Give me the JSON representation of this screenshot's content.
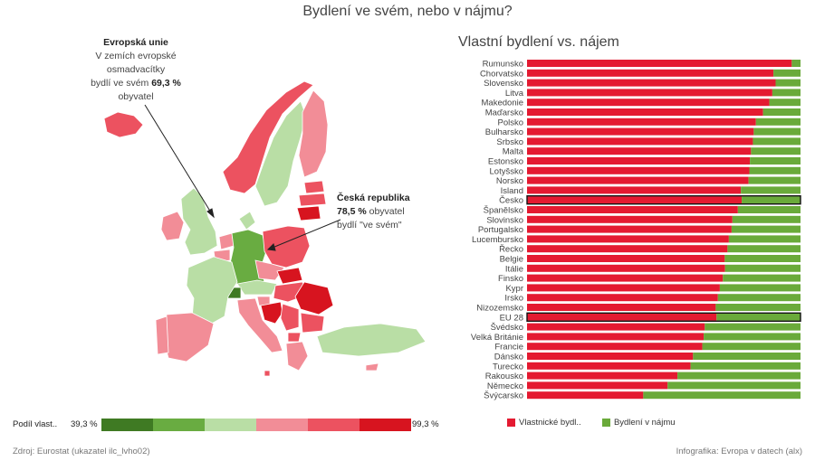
{
  "title": "Bydlení ve svém, nebo v nájmu?",
  "annotation_eu": {
    "heading": "Evropská unie",
    "line1": "V zemích evropské",
    "line2": "osmadvacítky",
    "line3_pre": "bydlí ve svém ",
    "line3_bold": "69,3 %",
    "line4": "obyvatel"
  },
  "annotation_cz": {
    "heading": "Česká republika",
    "line1_bold": "78,5 %",
    "line1_rest": " obyvatel",
    "line2": "bydlí \"ve svém\""
  },
  "map_legend": {
    "label": "Podíl vlast..",
    "min": "39,3 %",
    "max": "99,3 %",
    "colors": [
      "#3f7a23",
      "#69ac41",
      "#b9dea5",
      "#f28d97",
      "#ec5260",
      "#d7141f"
    ]
  },
  "chart_data": {
    "type": "bar",
    "title": "Vlastní bydlení vs. nájem",
    "orientation": "horizontal-stacked-100",
    "categories": [
      "Rumunsko",
      "Chorvatsko",
      "Slovensko",
      "Litva",
      "Makedonie",
      "Maďarsko",
      "Polsko",
      "Bulharsko",
      "Srbsko",
      "Malta",
      "Estonsko",
      "Lotyšsko",
      "Norsko",
      "Island",
      "Česko",
      "Španělsko",
      "Slovinsko",
      "Portugalsko",
      "Lucembursko",
      "Řecko",
      "Belgie",
      "Itálie",
      "Finsko",
      "Kypr",
      "Irsko",
      "Nizozemsko",
      "EU 28",
      "Švédsko",
      "Velká Británie",
      "Francie",
      "Dánsko",
      "Turecko",
      "Rakousko",
      "Německo",
      "Švýcarsko"
    ],
    "series": [
      {
        "name": "Vlastnické bydl..",
        "color": "#e41a31",
        "values": [
          96.8,
          90.1,
          90.9,
          89.7,
          88.6,
          86.3,
          83.7,
          82.9,
          82.6,
          81.9,
          81.5,
          81.3,
          81.0,
          78.2,
          78.5,
          77.1,
          75.1,
          74.8,
          73.8,
          73.3,
          72.3,
          72.4,
          71.6,
          70.5,
          69.8,
          69.0,
          69.3,
          65.0,
          64.6,
          64.1,
          60.7,
          59.8,
          55.0,
          51.4,
          42.5
        ]
      },
      {
        "name": "Bydlení v nájmu",
        "color": "#6aaa3a",
        "values": [
          3.2,
          9.9,
          9.1,
          10.3,
          11.4,
          13.7,
          16.3,
          17.1,
          17.4,
          18.1,
          18.5,
          18.7,
          19.0,
          21.8,
          21.5,
          22.9,
          24.9,
          25.2,
          26.2,
          26.7,
          27.7,
          27.6,
          28.4,
          29.5,
          30.2,
          31.0,
          30.7,
          35.0,
          35.4,
          35.9,
          39.3,
          40.2,
          45.0,
          48.6,
          57.5
        ]
      }
    ],
    "highlighted": [
      "Česko",
      "EU 28"
    ],
    "xlim": [
      0,
      100
    ],
    "xticks": [
      "0,0 %",
      "20,0 %",
      "40,0 %",
      "60,0 %",
      "80,0 %",
      "100,0 %"
    ]
  },
  "map_regions": {
    "colors": {
      "Portugalsko": "#f28d97",
      "Španělsko": "#f28d97",
      "Francie": "#b9dea5",
      "Velká Británie": "#b9dea5",
      "Irsko": "#f28d97",
      "Island": "#ec5260",
      "Norsko": "#ec5260",
      "Švédsko": "#b9dea5",
      "Finsko": "#f28d97",
      "Dánsko": "#b9dea5",
      "Německo": "#69ac41",
      "Nizozemsko": "#f28d97",
      "Belgie": "#f28d97",
      "Švýcarsko": "#3f7a23",
      "Rakousko": "#b9dea5",
      "Česko": "#f28d97",
      "Polsko": "#ec5260",
      "Itálie": "#f28d97",
      "Slovinsko": "#f28d97",
      "Chorvatsko": "#d7141f",
      "Maďarsko": "#ec5260",
      "Slovensko": "#d7141f",
      "Litva": "#d7141f",
      "Lotyšsko": "#ec5260",
      "Estonsko": "#ec5260",
      "Rumunsko": "#d7141f",
      "Bulharsko": "#ec5260",
      "Srbsko": "#ec5260",
      "Makedonie": "#ec5260",
      "Řecko": "#f28d97",
      "Turecko": "#b9dea5",
      "Kypr": "#f28d97",
      "Malta": "#ec5260"
    }
  },
  "bar_legend": {
    "own": "Vlastnické bydl..",
    "rent": "Bydlení v nájmu"
  },
  "footer": {
    "left": "Zdroj: Eurostat (ukazatel ilc_lvho02)",
    "right": "Infografika: Evropa v datech (alx)"
  }
}
